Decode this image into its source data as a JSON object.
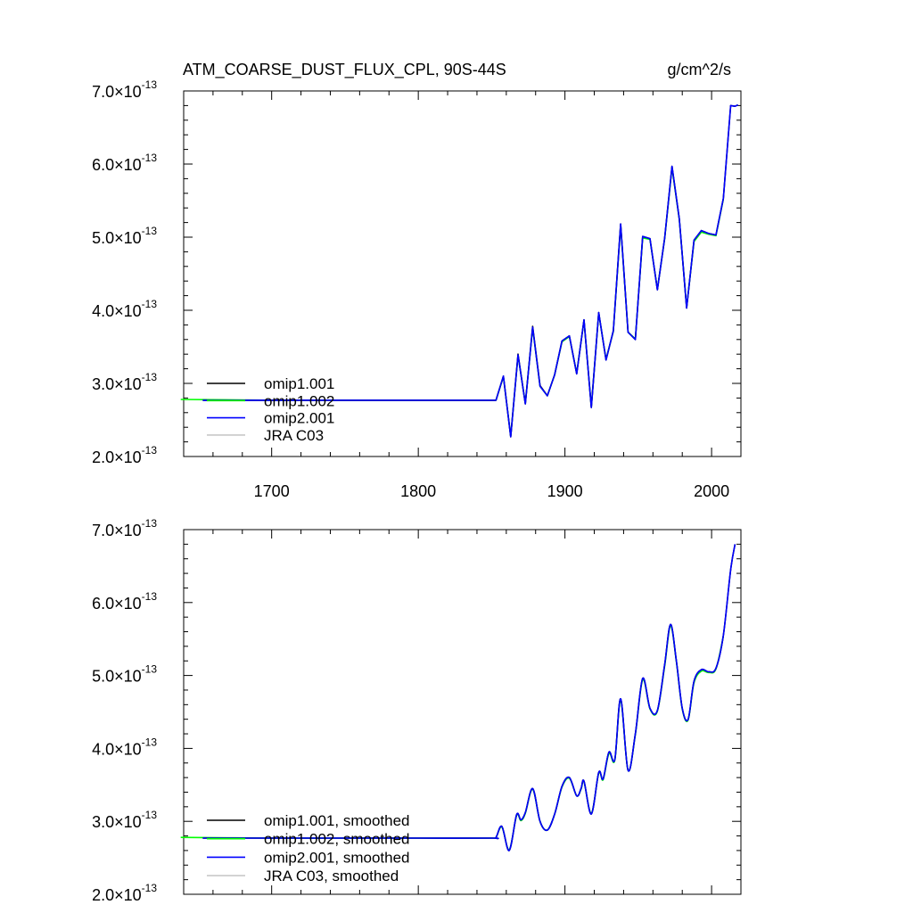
{
  "header": {
    "title": "ATM_COARSE_DUST_FLUX_CPL, 90S-44S",
    "units": "g/cm^2/s"
  },
  "chart_data": [
    {
      "type": "line",
      "title": "ATM_COARSE_DUST_FLUX_CPL, 90S-44S",
      "units": "g/cm^2/s",
      "xlim": [
        1640,
        2020
      ],
      "ylim": [
        2e-13,
        7e-13
      ],
      "x_ticks": [
        1700,
        1800,
        1900,
        2000
      ],
      "x_tick_labels": [
        "1700",
        "1800",
        "1900",
        "2000"
      ],
      "y_ticks": [
        2e-13,
        3e-13,
        4e-13,
        5e-13,
        6e-13,
        7e-13
      ],
      "y_tick_labels": [
        {
          "mantissa": "2.0",
          "times": "×10",
          "exponent": "-13"
        },
        {
          "mantissa": "3.0",
          "times": "×10",
          "exponent": "-13"
        },
        {
          "mantissa": "4.0",
          "times": "×10",
          "exponent": "-13"
        },
        {
          "mantissa": "5.0",
          "times": "×10",
          "exponent": "-13"
        },
        {
          "mantissa": "6.0",
          "times": "×10",
          "exponent": "-13"
        },
        {
          "mantissa": "7.0",
          "times": "×10",
          "exponent": "-13"
        }
      ],
      "legend_position": "bottom-left",
      "series": [
        {
          "name": "omip1.001",
          "color": "#000000",
          "x": [
            1653,
            1700,
            1750,
            1800,
            1850,
            1853,
            1858,
            1863,
            1868,
            1873,
            1878,
            1883,
            1888,
            1893,
            1898,
            1903,
            1908,
            1913,
            1918,
            1923,
            1928,
            1933,
            1938,
            1943,
            1948,
            1953,
            1958,
            1963,
            1968,
            1973,
            1978,
            1983,
            1988,
            1993,
            1998,
            2003,
            2008,
            2013,
            2016,
            2018
          ],
          "y": [
            2.77e-13,
            2.77e-13,
            2.77e-13,
            2.77e-13,
            2.77e-13,
            2.77e-13,
            3.1e-13,
            2.27e-13,
            3.4e-13,
            2.72e-13,
            3.78e-13,
            2.97e-13,
            2.83e-13,
            3.12e-13,
            3.58e-13,
            3.65e-13,
            3.13e-13,
            3.87e-13,
            2.67e-13,
            3.97e-13,
            3.32e-13,
            3.72e-13,
            5.18e-13,
            3.7e-13,
            3.6e-13,
            5.01e-13,
            4.98e-13,
            4.28e-13,
            4.99e-13,
            5.97e-13,
            5.25e-13,
            4.03e-13,
            4.96e-13,
            5.09e-13,
            5.05e-13,
            5.03e-13,
            5.53e-13,
            6.8e-13,
            6.79e-13,
            6.81e-13
          ]
        },
        {
          "name": "omip1.002",
          "color": "#00ff00",
          "x": [
            1638,
            1700,
            1750,
            1800,
            1850,
            1853,
            1858,
            1863,
            1868,
            1873,
            1878,
            1883,
            1888,
            1893,
            1898,
            1903,
            1908,
            1913,
            1918,
            1923,
            1928,
            1933,
            1938,
            1943,
            1948,
            1953,
            1958,
            1963,
            1968,
            1973,
            1978,
            1983,
            1988,
            1993,
            1998,
            2003,
            2008
          ],
          "y": [
            2.78e-13,
            2.77e-13,
            2.77e-13,
            2.77e-13,
            2.77e-13,
            2.77e-13,
            3.09e-13,
            2.28e-13,
            3.38e-13,
            2.73e-13,
            3.76e-13,
            2.96e-13,
            2.83e-13,
            3.12e-13,
            3.57e-13,
            3.64e-13,
            3.14e-13,
            3.86e-13,
            2.68e-13,
            3.96e-13,
            3.33e-13,
            3.71e-13,
            5.16e-13,
            3.7e-13,
            3.61e-13,
            4.99e-13,
            4.97e-13,
            4.29e-13,
            4.98e-13,
            5.95e-13,
            5.24e-13,
            4.04e-13,
            4.94e-13,
            5.07e-13,
            5.04e-13,
            5.02e-13,
            5.52e-13
          ]
        },
        {
          "name": "omip2.001",
          "color": "#0000ff",
          "x": [
            1653,
            1700,
            1750,
            1800,
            1850,
            1853,
            1858,
            1863,
            1868,
            1873,
            1878,
            1883,
            1888,
            1893,
            1898,
            1903,
            1908,
            1913,
            1918,
            1923,
            1928,
            1933,
            1938,
            1943,
            1948,
            1953,
            1958,
            1963,
            1968,
            1973,
            1978,
            1983,
            1988,
            1993,
            1998,
            2003,
            2008,
            2013,
            2016,
            2018
          ],
          "y": [
            2.77e-13,
            2.77e-13,
            2.77e-13,
            2.77e-13,
            2.77e-13,
            2.77e-13,
            3.1e-13,
            2.27e-13,
            3.39e-13,
            2.72e-13,
            3.77e-13,
            2.96e-13,
            2.83e-13,
            3.12e-13,
            3.58e-13,
            3.65e-13,
            3.13e-13,
            3.87e-13,
            2.67e-13,
            3.97e-13,
            3.32e-13,
            3.72e-13,
            5.18e-13,
            3.7e-13,
            3.6e-13,
            5.01e-13,
            4.98e-13,
            4.28e-13,
            4.99e-13,
            5.97e-13,
            5.25e-13,
            4.03e-13,
            4.96e-13,
            5.09e-13,
            5.05e-13,
            5.03e-13,
            5.53e-13,
            6.8e-13,
            6.79e-13,
            6.81e-13
          ]
        },
        {
          "name": "JRA C03",
          "color": "#c8c8c8",
          "x": [],
          "y": []
        }
      ]
    },
    {
      "type": "line",
      "xlim": [
        1640,
        2020
      ],
      "ylim": [
        2e-13,
        7e-13
      ],
      "x_ticks": [
        1700,
        1800,
        1900,
        2000
      ],
      "x_tick_labels": [],
      "y_ticks": [
        2e-13,
        3e-13,
        4e-13,
        5e-13,
        6e-13,
        7e-13
      ],
      "y_tick_labels": [
        {
          "mantissa": "2.0",
          "times": "×10",
          "exponent": "-13"
        },
        {
          "mantissa": "3.0",
          "times": "×10",
          "exponent": "-13"
        },
        {
          "mantissa": "4.0",
          "times": "×10",
          "exponent": "-13"
        },
        {
          "mantissa": "5.0",
          "times": "×10",
          "exponent": "-13"
        },
        {
          "mantissa": "6.0",
          "times": "×10",
          "exponent": "-13"
        },
        {
          "mantissa": "7.0",
          "times": "×10",
          "exponent": "-13"
        }
      ],
      "legend_position": "bottom-left",
      "smooth": true,
      "series": [
        {
          "name": "omip1.001, smoothed",
          "color": "#000000",
          "x": [
            1653,
            1700,
            1750,
            1800,
            1850,
            1853,
            1857,
            1862,
            1867,
            1870,
            1873,
            1878,
            1883,
            1888,
            1893,
            1898,
            1903,
            1908,
            1911,
            1913,
            1918,
            1923,
            1926,
            1930,
            1934,
            1938,
            1943,
            1948,
            1953,
            1958,
            1963,
            1968,
            1972,
            1976,
            1980,
            1984,
            1988,
            1993,
            1998,
            2003,
            2008,
            2013,
            2016
          ],
          "y": [
            2.77e-13,
            2.77e-13,
            2.77e-13,
            2.77e-13,
            2.77e-13,
            2.78e-13,
            2.93e-13,
            2.6e-13,
            3.09e-13,
            3.02e-13,
            3.12e-13,
            3.45e-13,
            3e-13,
            2.88e-13,
            3.1e-13,
            3.48e-13,
            3.6e-13,
            3.35e-13,
            3.45e-13,
            3.55e-13,
            3.1e-13,
            3.67e-13,
            3.58e-13,
            3.95e-13,
            3.85e-13,
            4.68e-13,
            3.7e-13,
            4.2e-13,
            4.96e-13,
            4.55e-13,
            4.52e-13,
            5.15e-13,
            5.7e-13,
            5.2e-13,
            4.55e-13,
            4.4e-13,
            4.92e-13,
            5.08e-13,
            5.05e-13,
            5.1e-13,
            5.55e-13,
            6.45e-13,
            6.8e-13
          ]
        },
        {
          "name": "omip1.002, smoothed",
          "color": "#00ff00",
          "x": [
            1638,
            1700,
            1750,
            1800,
            1850,
            1853,
            1857,
            1862,
            1867,
            1870,
            1873,
            1878,
            1883,
            1888,
            1893,
            1898,
            1903,
            1908,
            1911,
            1913,
            1918,
            1923,
            1926,
            1930,
            1934,
            1938,
            1943,
            1948,
            1953,
            1958,
            1963,
            1968,
            1972,
            1976,
            1980,
            1984,
            1988,
            1993,
            1998,
            2003,
            2008
          ],
          "y": [
            2.78e-13,
            2.77e-13,
            2.77e-13,
            2.77e-13,
            2.77e-13,
            2.78e-13,
            2.92e-13,
            2.61e-13,
            3.08e-13,
            3.01e-13,
            3.11e-13,
            3.44e-13,
            3e-13,
            2.88e-13,
            3.1e-13,
            3.47e-13,
            3.59e-13,
            3.35e-13,
            3.44e-13,
            3.54e-13,
            3.11e-13,
            3.66e-13,
            3.57e-13,
            3.93e-13,
            3.84e-13,
            4.66e-13,
            3.7e-13,
            4.19e-13,
            4.94e-13,
            4.54e-13,
            4.51e-13,
            5.13e-13,
            5.68e-13,
            5.19e-13,
            4.54e-13,
            4.39e-13,
            4.9e-13,
            5.06e-13,
            5.04e-13,
            5.09e-13,
            5.54e-13
          ]
        },
        {
          "name": "omip2.001, smoothed",
          "color": "#0000ff",
          "x": [
            1653,
            1700,
            1750,
            1800,
            1850,
            1853,
            1857,
            1862,
            1867,
            1870,
            1873,
            1878,
            1883,
            1888,
            1893,
            1898,
            1903,
            1908,
            1911,
            1913,
            1918,
            1923,
            1926,
            1930,
            1934,
            1938,
            1943,
            1948,
            1953,
            1958,
            1963,
            1968,
            1972,
            1976,
            1980,
            1984,
            1988,
            1993,
            1998,
            2003,
            2008,
            2013,
            2016
          ],
          "y": [
            2.77e-13,
            2.77e-13,
            2.77e-13,
            2.77e-13,
            2.77e-13,
            2.78e-13,
            2.93e-13,
            2.6e-13,
            3.09e-13,
            3.02e-13,
            3.12e-13,
            3.45e-13,
            3e-13,
            2.88e-13,
            3.1e-13,
            3.48e-13,
            3.6e-13,
            3.35e-13,
            3.45e-13,
            3.55e-13,
            3.1e-13,
            3.67e-13,
            3.58e-13,
            3.95e-13,
            3.85e-13,
            4.68e-13,
            3.7e-13,
            4.2e-13,
            4.96e-13,
            4.55e-13,
            4.52e-13,
            5.15e-13,
            5.7e-13,
            5.2e-13,
            4.55e-13,
            4.4e-13,
            4.92e-13,
            5.08e-13,
            5.05e-13,
            5.1e-13,
            5.55e-13,
            6.45e-13,
            6.8e-13
          ]
        },
        {
          "name": "JRA C03, smoothed",
          "color": "#c8c8c8",
          "x": [],
          "y": []
        }
      ]
    }
  ]
}
